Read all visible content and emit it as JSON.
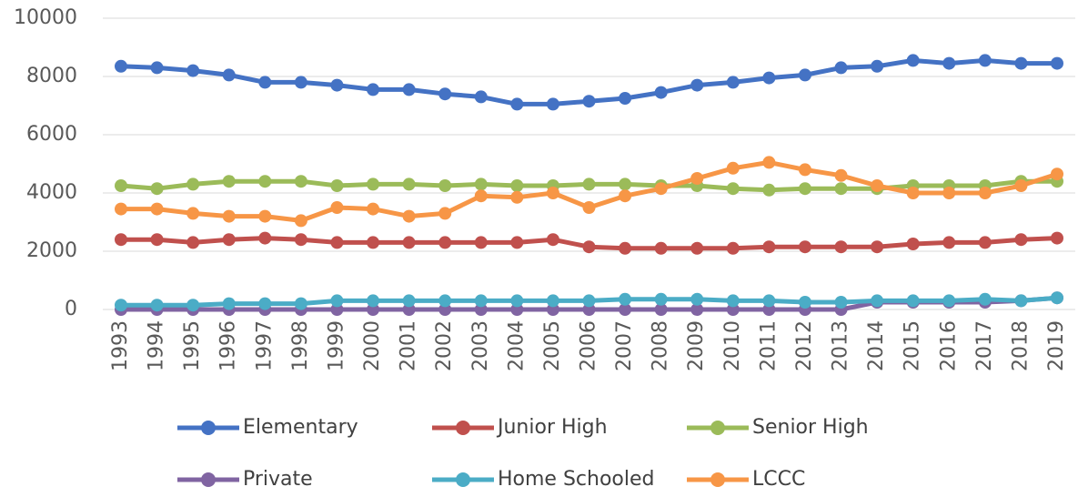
{
  "chart_data": {
    "type": "line",
    "categories": [
      "1993",
      "1994",
      "1995",
      "1996",
      "1997",
      "1998",
      "1999",
      "2000",
      "2001",
      "2002",
      "2003",
      "2004",
      "2005",
      "2006",
      "2007",
      "2008",
      "2009",
      "2010",
      "2011",
      "2012",
      "2013",
      "2014",
      "2015",
      "2016",
      "2017",
      "2018",
      "2019"
    ],
    "series": [
      {
        "name": "Elementary",
        "color": "#4472c4",
        "values": [
          8350,
          8300,
          8200,
          8050,
          7800,
          7800,
          7700,
          7550,
          7550,
          7400,
          7300,
          7050,
          7050,
          7150,
          7250,
          7450,
          7700,
          7800,
          7950,
          8050,
          8300,
          8350,
          8550,
          8450,
          8550,
          8450,
          8450
        ]
      },
      {
        "name": "Junior High",
        "color": "#c0504d",
        "values": [
          2400,
          2400,
          2300,
          2400,
          2450,
          2400,
          2300,
          2300,
          2300,
          2300,
          2300,
          2300,
          2400,
          2150,
          2100,
          2100,
          2100,
          2100,
          2150,
          2150,
          2150,
          2150,
          2250,
          2300,
          2300,
          2400,
          2450
        ]
      },
      {
        "name": "Senior High",
        "color": "#9bbb59",
        "values": [
          4250,
          4150,
          4300,
          4400,
          4400,
          4400,
          4250,
          4300,
          4300,
          4250,
          4300,
          4250,
          4250,
          4300,
          4300,
          4250,
          4250,
          4150,
          4100,
          4150,
          4150,
          4150,
          4250,
          4250,
          4250,
          4400,
          4400
        ]
      },
      {
        "name": "Private",
        "color": "#8064a2",
        "values": [
          0,
          0,
          0,
          0,
          0,
          0,
          0,
          0,
          0,
          0,
          0,
          0,
          0,
          0,
          0,
          0,
          0,
          0,
          0,
          0,
          0,
          250,
          250,
          250,
          250,
          300,
          400
        ]
      },
      {
        "name": "Home Schooled",
        "color": "#4bacc6",
        "values": [
          150,
          150,
          150,
          200,
          200,
          200,
          300,
          300,
          300,
          300,
          300,
          300,
          300,
          300,
          350,
          350,
          350,
          300,
          300,
          250,
          250,
          300,
          300,
          300,
          350,
          300,
          400
        ]
      },
      {
        "name": "LCCC",
        "color": "#f79646",
        "values": [
          3450,
          3450,
          3300,
          3200,
          3200,
          3050,
          3500,
          3450,
          3200,
          3300,
          3900,
          3850,
          4000,
          3500,
          3900,
          4150,
          4500,
          4850,
          5050,
          4800,
          4600,
          4250,
          4000,
          4000,
          4000,
          4250,
          4650
        ]
      }
    ],
    "ylim": [
      0,
      10000
    ],
    "yticks": [
      0,
      2000,
      4000,
      6000,
      8000,
      10000
    ],
    "grid": true
  }
}
